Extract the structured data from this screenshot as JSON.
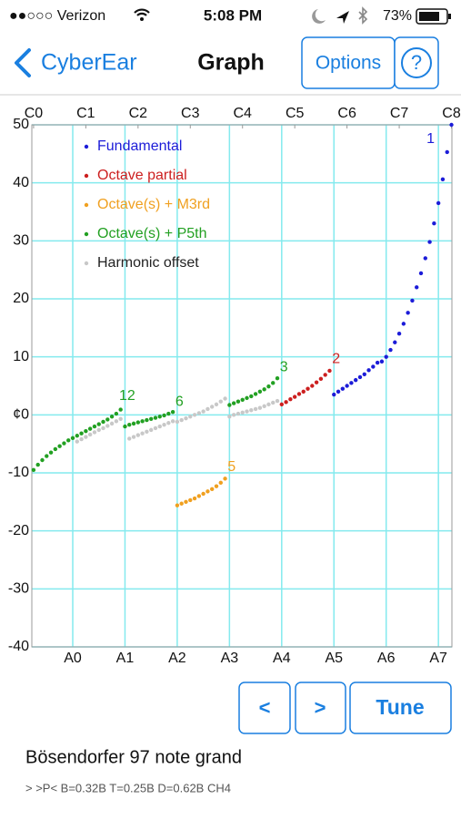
{
  "status_bar": {
    "carrier": "●●○○○ Verizon",
    "time": "5:08 PM",
    "battery": "73%"
  },
  "nav": {
    "back": "CyberEar",
    "title": "Graph",
    "options": "Options",
    "help": "?"
  },
  "controls": {
    "prev": "<",
    "next": ">",
    "tune": "Tune"
  },
  "info": {
    "instrument": "Bösendorfer 97 note grand",
    "details": "> >P< B=0.32B T=0.25B D=0.62B CH4"
  },
  "chart_data": {
    "type": "scatter",
    "xlim": [
      11.6,
      108.1
    ],
    "ylim": [
      -40,
      50
    ],
    "xticks_top": [
      {
        "value": 12,
        "label": "C0"
      },
      {
        "value": 24,
        "label": "C1"
      },
      {
        "value": 36,
        "label": "C2"
      },
      {
        "value": 48,
        "label": "C3"
      },
      {
        "value": 60,
        "label": "C4"
      },
      {
        "value": 72,
        "label": "C5"
      },
      {
        "value": 84,
        "label": "C6"
      },
      {
        "value": 96,
        "label": "C7"
      },
      {
        "value": 108,
        "label": "C8"
      }
    ],
    "xticks": [
      {
        "value": 21,
        "label": "A0"
      },
      {
        "value": 33,
        "label": "A1"
      },
      {
        "value": 45,
        "label": "A2"
      },
      {
        "value": 57,
        "label": "A3"
      },
      {
        "value": 69,
        "label": "A4"
      },
      {
        "value": 81,
        "label": "A5"
      },
      {
        "value": 93,
        "label": "A6"
      },
      {
        "value": 105,
        "label": "A7"
      }
    ],
    "yticks": [
      50,
      40,
      30,
      20,
      10,
      {
        "value": 0,
        "label": "¢0"
      },
      -10,
      -20,
      -30,
      -40
    ],
    "grid": true,
    "grid_color": "#84eaee",
    "series": [
      {
        "name": "Fundamental",
        "color": "#1c1cd8",
        "label_color": "#1c1cd8",
        "x": [
          81,
          82,
          83,
          84,
          85,
          86,
          87,
          88,
          89,
          90,
          91,
          92,
          93,
          94,
          95,
          96,
          97,
          98,
          99,
          100,
          101,
          102,
          103,
          104,
          105,
          106,
          107,
          108
        ],
        "values": [
          3.5,
          4.0,
          4.5,
          5.0,
          5.5,
          6.0,
          6.5,
          7.0,
          7.7,
          8.3,
          9.0,
          9.2,
          10.0,
          11.2,
          12.5,
          14.0,
          15.7,
          17.6,
          19.7,
          22.0,
          24.4,
          27.0,
          29.8,
          33.0,
          36.5,
          40.6,
          45.3,
          50.0
        ]
      },
      {
        "name": "Octave partial",
        "color": "#cc1f1f",
        "label_color": "#cc1f1f",
        "x": [
          69,
          70,
          71,
          72,
          73,
          74,
          75,
          76,
          77,
          78,
          79,
          80
        ],
        "values": [
          1.8,
          2.2,
          2.7,
          3.1,
          3.6,
          4.0,
          4.5,
          5.0,
          5.6,
          6.2,
          6.9,
          7.6
        ]
      },
      {
        "name": "Octave(s) + M3rd",
        "color": "#f0a020",
        "label_color": "#f0a020",
        "x": [
          45,
          46,
          47,
          48,
          49,
          50,
          51,
          52,
          53,
          54,
          55,
          56
        ],
        "values": [
          -15.6,
          -15.3,
          -15.0,
          -14.7,
          -14.4,
          -14.0,
          -13.6,
          -13.2,
          -12.8,
          -12.3,
          -11.7,
          -11.0
        ]
      },
      {
        "name": "Octave(s) + P5th",
        "color": "#22a022",
        "label_color": "#22a022",
        "x": [
          12,
          13,
          14,
          15,
          16,
          17,
          18,
          19,
          20,
          21,
          22,
          23,
          24,
          25,
          26,
          27,
          28,
          29,
          30,
          31,
          32,
          33,
          34,
          35,
          36,
          37,
          38,
          39,
          40,
          41,
          42,
          43,
          44,
          57,
          58,
          59,
          60,
          61,
          62,
          63,
          64,
          65,
          66,
          67,
          68
        ],
        "values": [
          -9.5,
          -8.6,
          -7.8,
          -7.1,
          -6.5,
          -5.9,
          -5.4,
          -4.9,
          -4.4,
          -4.0,
          -3.6,
          -3.2,
          -2.8,
          -2.4,
          -2.0,
          -1.6,
          -1.2,
          -0.8,
          -0.3,
          0.2,
          0.9,
          -2.0,
          -1.7,
          -1.5,
          -1.3,
          -1.1,
          -0.9,
          -0.7,
          -0.5,
          -0.3,
          -0.1,
          0.2,
          0.5,
          1.7,
          2.0,
          2.3,
          2.6,
          2.9,
          3.2,
          3.6,
          4.0,
          4.4,
          4.9,
          5.5,
          6.3
        ]
      },
      {
        "name": "Harmonic offset",
        "color": "#c8c8c8",
        "label_color": "#222222",
        "x": [
          22,
          23,
          24,
          25,
          26,
          27,
          28,
          29,
          30,
          31,
          32,
          34,
          35,
          36,
          37,
          38,
          39,
          40,
          41,
          42,
          43,
          44,
          45,
          46,
          47,
          48,
          49,
          50,
          51,
          52,
          53,
          54,
          55,
          56,
          57,
          58,
          59,
          60,
          61,
          62,
          63,
          64,
          65,
          66,
          67,
          68
        ],
        "values": [
          -4.6,
          -4.2,
          -3.8,
          -3.4,
          -3.0,
          -2.6,
          -2.3,
          -1.9,
          -1.5,
          -1.1,
          -0.7,
          -4.1,
          -3.8,
          -3.5,
          -3.2,
          -2.9,
          -2.6,
          -2.3,
          -2.0,
          -1.7,
          -1.4,
          -1.1,
          -1.2,
          -0.9,
          -0.6,
          -0.3,
          0.0,
          0.3,
          0.6,
          1.0,
          1.4,
          1.8,
          2.3,
          2.8,
          -0.3,
          0.0,
          0.2,
          0.4,
          0.6,
          0.8,
          1.0,
          1.2,
          1.5,
          1.8,
          2.1,
          2.4
        ]
      }
    ],
    "annotations": [
      {
        "text": "12",
        "x": 33.5,
        "y": 3.2,
        "color": "#22a022"
      },
      {
        "text": "6",
        "x": 45.5,
        "y": 2.2,
        "color": "#22a022"
      },
      {
        "text": "5",
        "x": 57.5,
        "y": -9.0,
        "color": "#f0a020"
      },
      {
        "text": "3",
        "x": 69.5,
        "y": 8.2,
        "color": "#22a022"
      },
      {
        "text": "2",
        "x": 81.5,
        "y": 9.6,
        "color": "#cc1f1f"
      },
      {
        "text": "1",
        "x": 103.2,
        "y": 47.5,
        "color": "#1c1cd8"
      }
    ]
  }
}
